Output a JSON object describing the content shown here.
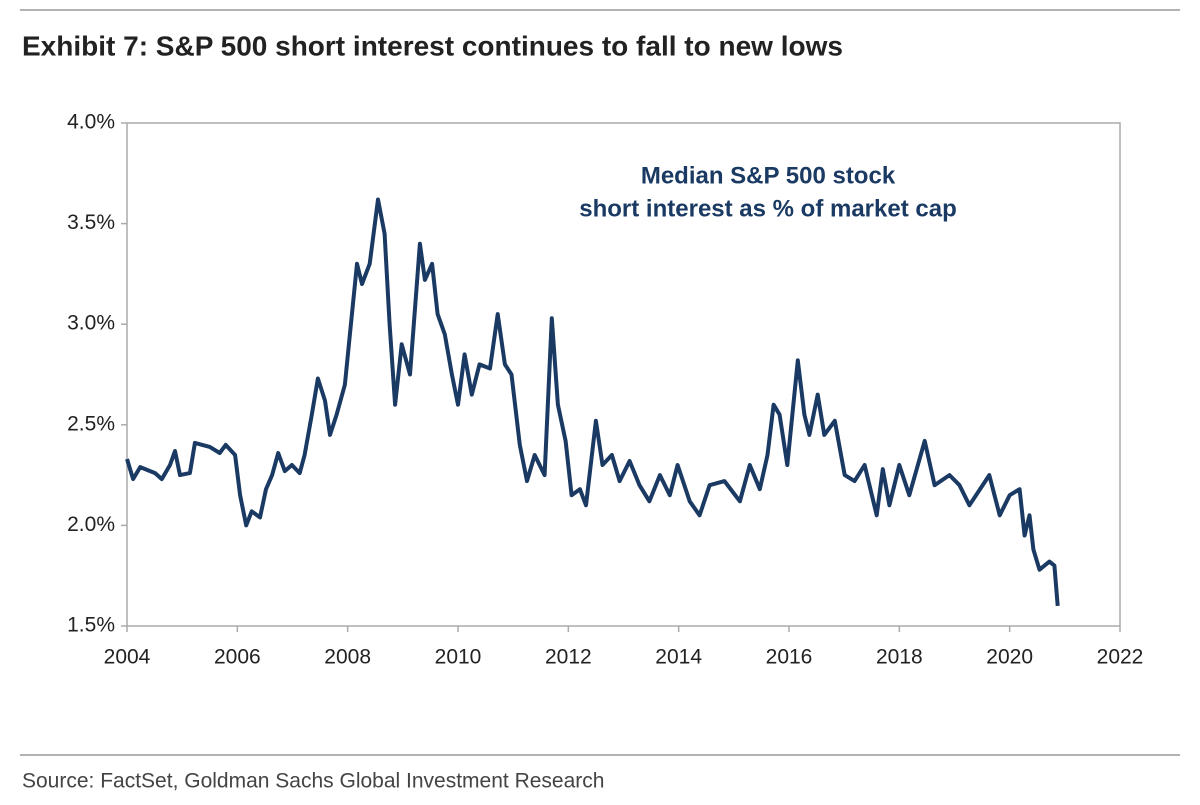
{
  "chart_data": {
    "type": "line",
    "title": "Exhibit 7: S&P 500 short interest continues to fall to new lows",
    "annotation": [
      "Median S&P 500 stock",
      "short interest as % of market cap"
    ],
    "source": "Source: FactSet, Goldman Sachs Global Investment Research",
    "xlim": [
      2004,
      2022
    ],
    "xticks": [
      2004,
      2006,
      2008,
      2010,
      2012,
      2014,
      2016,
      2018,
      2020,
      2022
    ],
    "ylim": [
      1.5,
      4.0
    ],
    "yticks": [
      {
        "value": 1.5,
        "label": "1.5%"
      },
      {
        "value": 2.0,
        "label": "2.0%"
      },
      {
        "value": 2.5,
        "label": "2.5%"
      },
      {
        "value": 3.0,
        "label": "3.0%"
      },
      {
        "value": 3.5,
        "label": "3.5%"
      },
      {
        "value": 4.0,
        "label": "4.0%"
      }
    ],
    "grid": false,
    "series": [
      {
        "color": "#1a3a63",
        "x": [
          2004.0,
          2004.11,
          2004.24,
          2004.51,
          2004.63,
          2004.78,
          2004.87,
          2004.96,
          2005.14,
          2005.23,
          2005.5,
          2005.68,
          2005.79,
          2005.96,
          2006.05,
          2006.16,
          2006.26,
          2006.41,
          2006.52,
          2006.63,
          2006.74,
          2006.86,
          2006.99,
          2007.13,
          2007.22,
          2007.35,
          2007.46,
          2007.59,
          2007.68,
          2007.8,
          2007.95,
          2008.04,
          2008.17,
          2008.26,
          2008.4,
          2008.55,
          2008.67,
          2008.76,
          2008.86,
          2008.98,
          2009.13,
          2009.31,
          2009.4,
          2009.53,
          2009.63,
          2009.76,
          2009.89,
          2010.0,
          2010.12,
          2010.25,
          2010.39,
          2010.58,
          2010.72,
          2010.85,
          2010.97,
          2011.12,
          2011.25,
          2011.39,
          2011.57,
          2011.7,
          2011.81,
          2011.95,
          2012.06,
          2012.21,
          2012.32,
          2012.5,
          2012.62,
          2012.79,
          2012.93,
          2013.11,
          2013.29,
          2013.47,
          2013.66,
          2013.84,
          2013.98,
          2014.2,
          2014.38,
          2014.56,
          2014.83,
          2015.11,
          2015.29,
          2015.47,
          2015.61,
          2015.72,
          2015.83,
          2015.97,
          2016.16,
          2016.28,
          2016.37,
          2016.52,
          2016.64,
          2016.83,
          2017.01,
          2017.19,
          2017.37,
          2017.59,
          2017.7,
          2017.82,
          2018.0,
          2018.18,
          2018.46,
          2018.64,
          2018.91,
          2019.09,
          2019.27,
          2019.63,
          2019.82,
          2020.0,
          2020.18,
          2020.27,
          2020.36,
          2020.43,
          2020.54,
          2020.72,
          2020.81,
          2020.87
        ],
        "values": [
          2.33,
          2.23,
          2.29,
          2.26,
          2.23,
          2.3,
          2.37,
          2.25,
          2.26,
          2.41,
          2.39,
          2.36,
          2.4,
          2.35,
          2.15,
          2.0,
          2.07,
          2.04,
          2.18,
          2.25,
          2.36,
          2.27,
          2.3,
          2.26,
          2.35,
          2.55,
          2.73,
          2.62,
          2.45,
          2.55,
          2.7,
          2.95,
          3.3,
          3.2,
          3.3,
          3.62,
          3.45,
          3.0,
          2.6,
          2.9,
          2.75,
          3.4,
          3.22,
          3.3,
          3.05,
          2.95,
          2.75,
          2.6,
          2.85,
          2.65,
          2.8,
          2.78,
          3.05,
          2.8,
          2.75,
          2.4,
          2.22,
          2.35,
          2.25,
          3.03,
          2.6,
          2.42,
          2.15,
          2.18,
          2.1,
          2.52,
          2.3,
          2.35,
          2.22,
          2.32,
          2.2,
          2.12,
          2.25,
          2.15,
          2.3,
          2.12,
          2.05,
          2.2,
          2.22,
          2.12,
          2.3,
          2.18,
          2.35,
          2.6,
          2.55,
          2.3,
          2.82,
          2.55,
          2.45,
          2.65,
          2.45,
          2.52,
          2.25,
          2.22,
          2.3,
          2.05,
          2.28,
          2.1,
          2.3,
          2.15,
          2.42,
          2.2,
          2.25,
          2.2,
          2.1,
          2.25,
          2.05,
          2.15,
          2.18,
          1.95,
          2.05,
          1.88,
          1.78,
          1.82,
          1.8,
          1.6
        ]
      }
    ]
  }
}
